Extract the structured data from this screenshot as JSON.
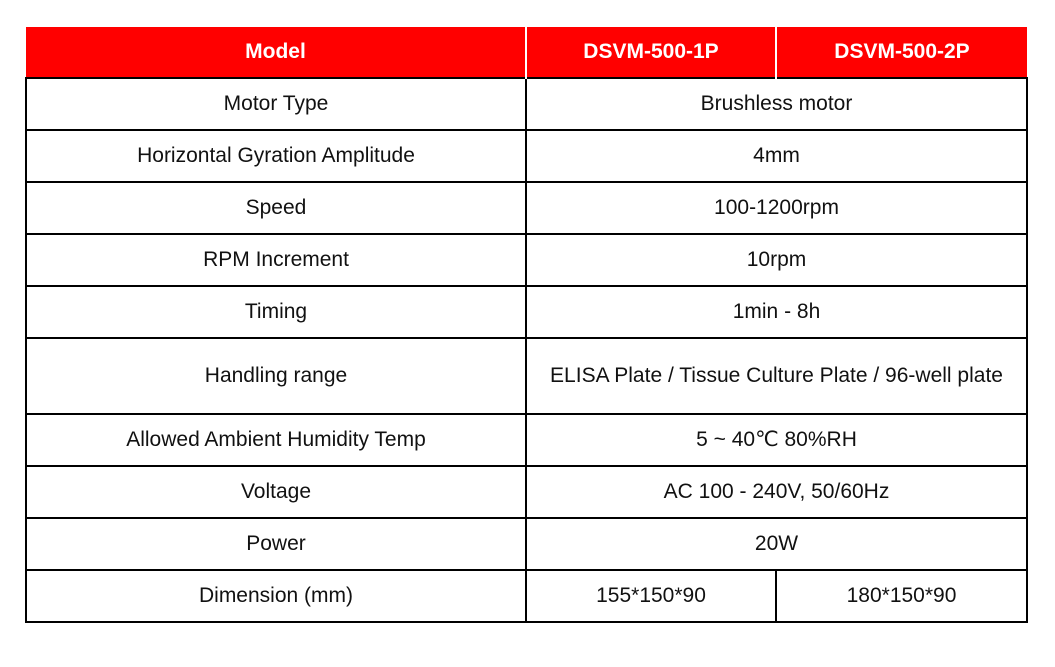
{
  "header": {
    "col1": "Model",
    "col2": "DSVM-500-1P",
    "col3": "DSVM-500-2P"
  },
  "rows": [
    {
      "label": "Motor Type",
      "value": "Brushless motor"
    },
    {
      "label": "Horizontal Gyration Amplitude",
      "value": "4mm"
    },
    {
      "label": "Speed",
      "value": "100-1200rpm"
    },
    {
      "label": "RPM Increment",
      "value": "10rpm"
    },
    {
      "label": "Timing",
      "value": "1min - 8h"
    },
    {
      "label": "Handling range",
      "value": "ELISA Plate / Tissue Culture Plate / 96-well plate"
    },
    {
      "label": "Allowed Ambient Humidity Temp",
      "value": "5 ~ 40℃ 80%RH"
    },
    {
      "label": "Voltage",
      "value": "AC 100 - 240V, 50/60Hz"
    },
    {
      "label": "Power",
      "value": "20W"
    }
  ],
  "dimension_row": {
    "label": "Dimension (mm)",
    "value_1p": "155*150*90",
    "value_2p": "180*150*90"
  },
  "colors": {
    "header_background": "#ff0000",
    "header_text": "#ffffff",
    "border": "#000000"
  }
}
